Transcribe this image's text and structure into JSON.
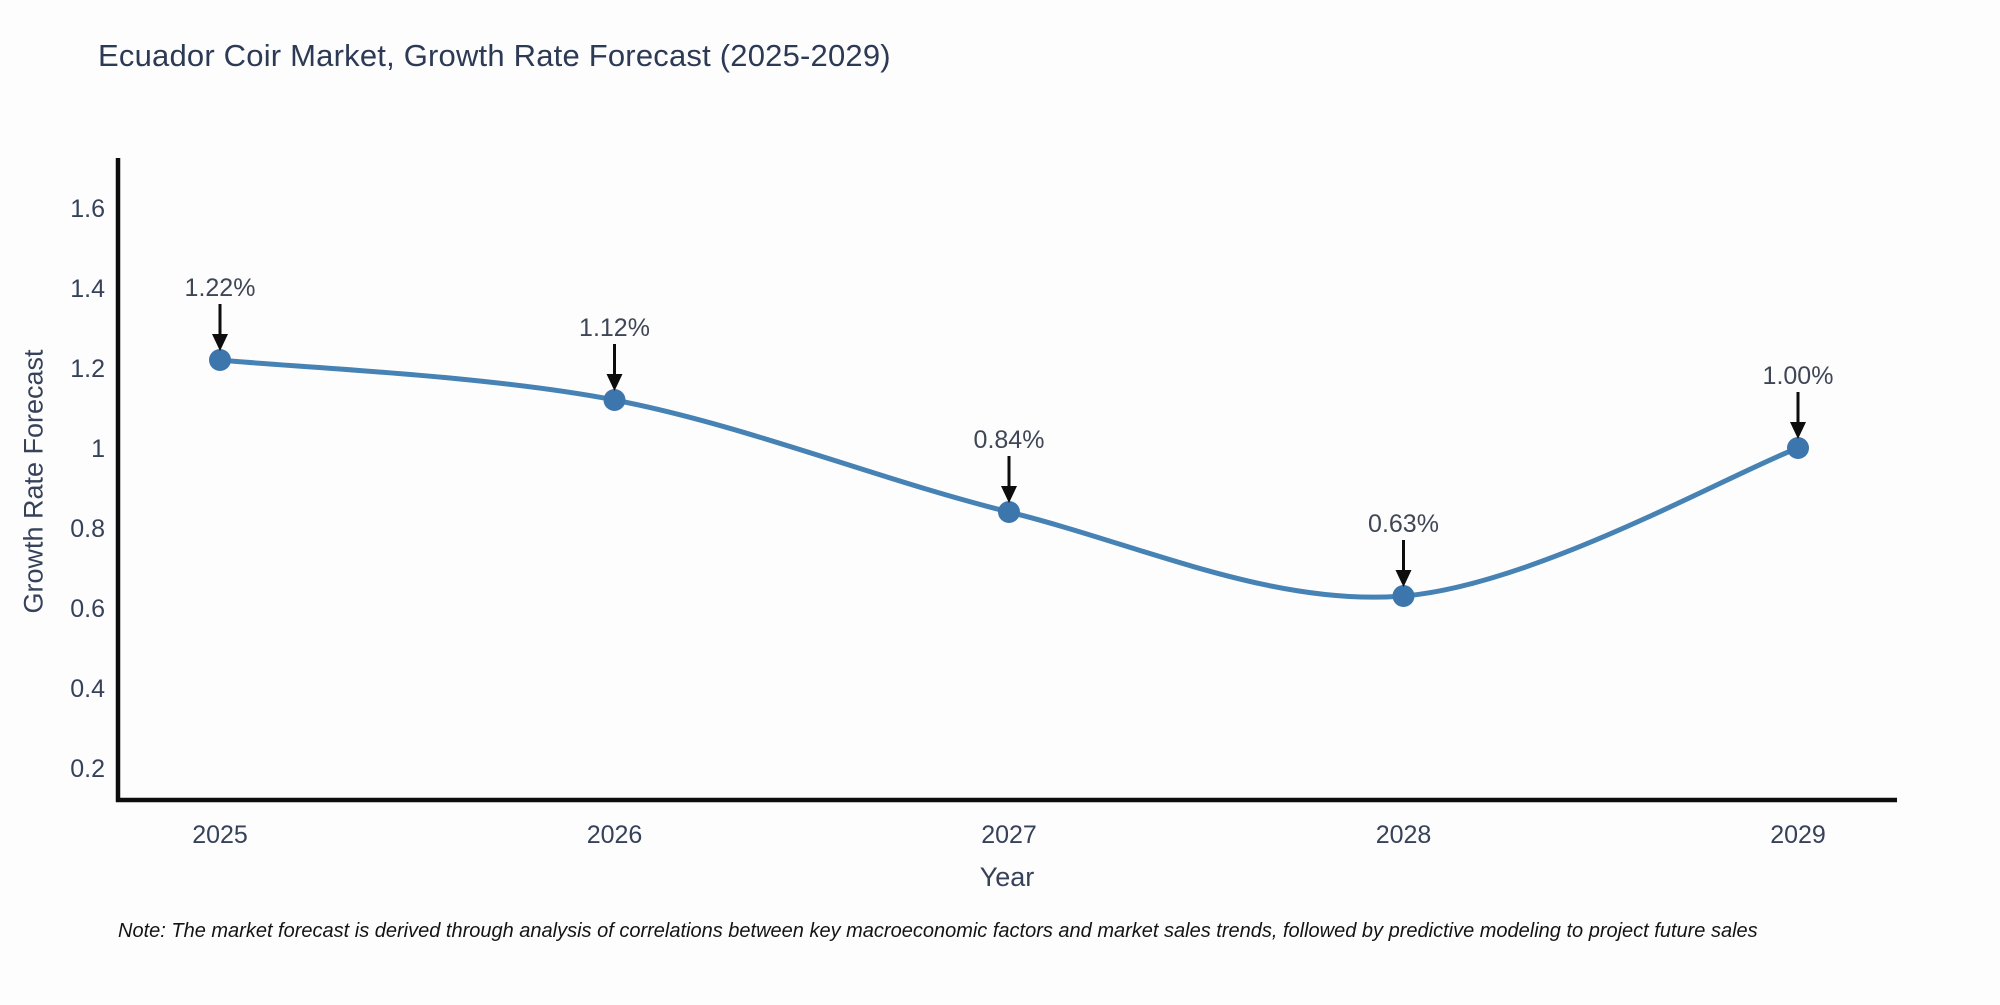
{
  "chart_data": {
    "type": "line",
    "title": "Ecuador Coir Market, Growth Rate Forecast (2025-2029)",
    "xlabel": "Year",
    "ylabel": "Growth Rate Forecast",
    "x": [
      2025,
      2026,
      2027,
      2028,
      2029
    ],
    "series": [
      {
        "name": "Growth Rate Forecast",
        "values": [
          1.22,
          1.12,
          0.84,
          0.63,
          1.0
        ],
        "point_labels": [
          "1.22%",
          "1.12%",
          "0.84%",
          "0.63%",
          "1.00%"
        ]
      }
    ],
    "yticks": [
      0.2,
      0.4,
      0.6,
      0.8,
      1,
      1.2,
      1.4,
      1.6
    ],
    "ylim": [
      0.12,
      1.72
    ],
    "grid": false,
    "legend_position": "none",
    "line_color": "#4682b4",
    "marker_color": "#3d76ad",
    "axis_color": "#0d0d0d",
    "tick_text_color": "#36415a",
    "annotation_text_color": "#3f4756",
    "annotation_arrow_color": "#0d0d0d",
    "note": "Note: The market forecast is derived through analysis of correlations between key macroeconomic factors and market sales trends, followed by predictive modeling to project future sales"
  }
}
